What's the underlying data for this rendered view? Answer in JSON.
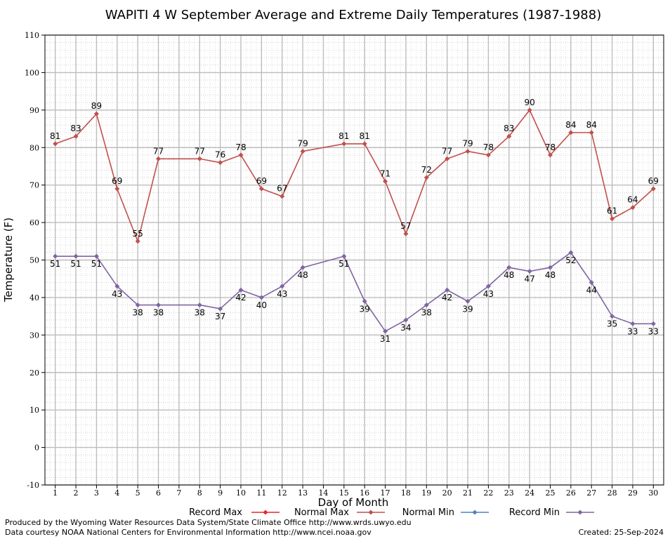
{
  "chart_data": {
    "type": "line",
    "title": "WAPITI 4 W September Average and Extreme Daily Temperatures (1987-1988)",
    "xlabel": "Day of Month",
    "ylabel": "Temperature (F)",
    "ylim": [
      -10,
      110
    ],
    "xlim": [
      0.5,
      30.5
    ],
    "yticks": [
      -10,
      0,
      10,
      20,
      30,
      40,
      50,
      60,
      70,
      80,
      90,
      100,
      110
    ],
    "xticks": [
      1,
      2,
      3,
      4,
      5,
      6,
      7,
      8,
      9,
      10,
      11,
      12,
      13,
      14,
      15,
      16,
      17,
      18,
      19,
      20,
      21,
      22,
      23,
      24,
      25,
      26,
      27,
      28,
      29,
      30
    ],
    "grid": true,
    "legend": [
      {
        "name": "Record Max",
        "color": "#e8262a"
      },
      {
        "name": "Normal Max",
        "color": "#c0504d"
      },
      {
        "name": "Normal Min",
        "color": "#4f81bd"
      },
      {
        "name": "Record Min",
        "color": "#8064a2"
      }
    ],
    "series": [
      {
        "name": "Normal Max",
        "color": "#c0504d",
        "points": [
          [
            1,
            81
          ],
          [
            2,
            83
          ],
          [
            3,
            89
          ],
          [
            4,
            69
          ],
          [
            5,
            55
          ],
          [
            6,
            77
          ],
          [
            8,
            77
          ],
          [
            9,
            76
          ],
          [
            10,
            78
          ],
          [
            11,
            69
          ],
          [
            12,
            67
          ],
          [
            13,
            79
          ],
          [
            15,
            81
          ],
          [
            16,
            81
          ],
          [
            17,
            71
          ],
          [
            18,
            57
          ],
          [
            19,
            72
          ],
          [
            20,
            77
          ],
          [
            21,
            79
          ],
          [
            22,
            78
          ],
          [
            23,
            83
          ],
          [
            24,
            90
          ],
          [
            25,
            78
          ],
          [
            26,
            84
          ],
          [
            27,
            84
          ],
          [
            28,
            61
          ],
          [
            29,
            64
          ],
          [
            30,
            69
          ]
        ],
        "label_position": "above"
      },
      {
        "name": "Record Min",
        "color": "#8064a2",
        "points": [
          [
            1,
            51
          ],
          [
            2,
            51
          ],
          [
            3,
            51
          ],
          [
            4,
            43
          ],
          [
            5,
            38
          ],
          [
            6,
            38
          ],
          [
            8,
            38
          ],
          [
            9,
            37
          ],
          [
            10,
            42
          ],
          [
            11,
            40
          ],
          [
            12,
            43
          ],
          [
            13,
            48
          ],
          [
            15,
            51
          ],
          [
            16,
            39
          ],
          [
            17,
            31
          ],
          [
            18,
            34
          ],
          [
            19,
            38
          ],
          [
            20,
            42
          ],
          [
            21,
            39
          ],
          [
            22,
            43
          ],
          [
            23,
            48
          ],
          [
            24,
            47
          ],
          [
            25,
            48
          ],
          [
            26,
            52
          ],
          [
            27,
            44
          ],
          [
            28,
            35
          ],
          [
            29,
            33
          ],
          [
            30,
            33
          ]
        ],
        "label_position": "below"
      }
    ]
  },
  "footer": {
    "line1": "Produced by the Wyoming Water Resources Data System/State Climate Office http://www.wrds.uwyo.edu",
    "line2": "Data courtesy NOAA National Centers for Environmental Information http://www.ncei.noaa.gov",
    "created": "Created:  25-Sep-2024"
  }
}
